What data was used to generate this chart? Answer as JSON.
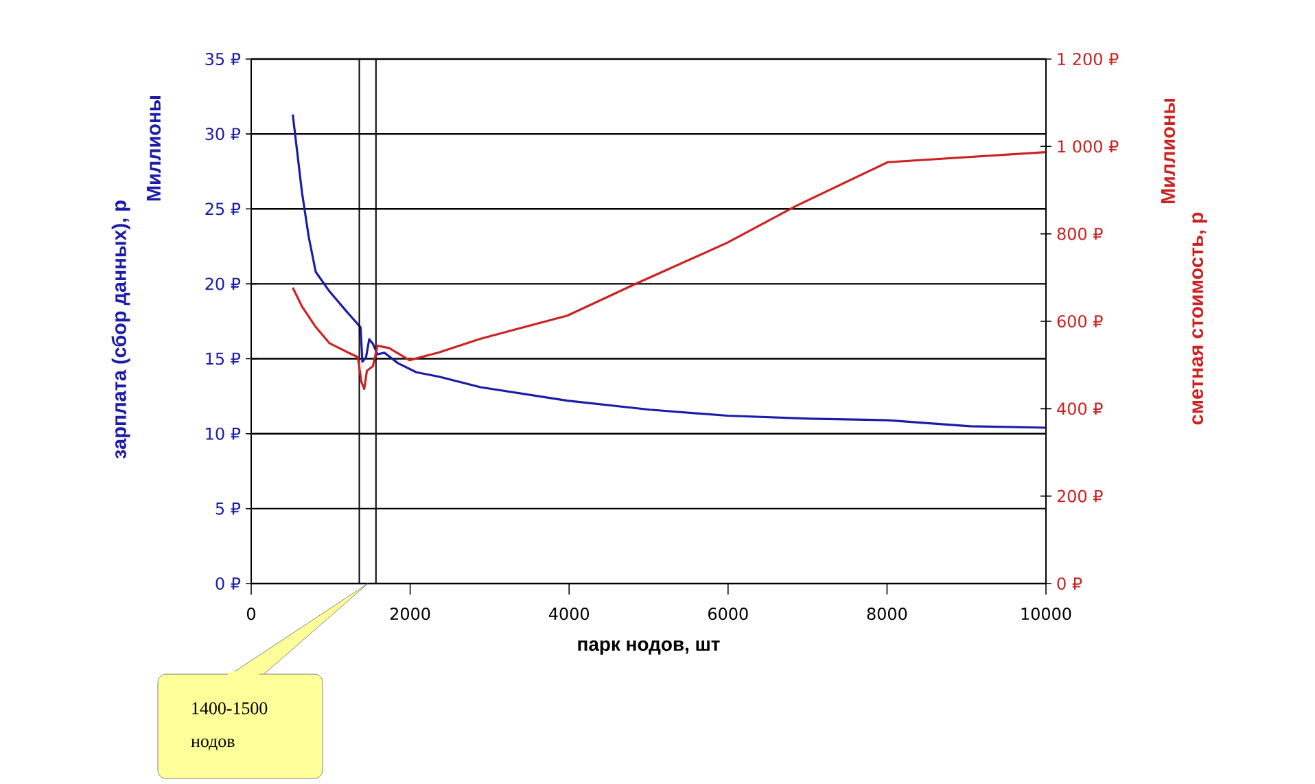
{
  "chart_data": {
    "type": "line",
    "xlabel": "парк нодов, шт",
    "ylabel": "зарплата (сбор данных), р",
    "y2label": "сметная стоимость, р",
    "xlim": [
      0,
      10000
    ],
    "xticks": [
      0,
      2000,
      4000,
      6000,
      8000,
      10000
    ],
    "ylim": [
      0,
      35
    ],
    "yticks": [
      {
        "value": 0,
        "label": "0 ₽"
      },
      {
        "value": 5,
        "label": "5 ₽"
      },
      {
        "value": 10,
        "label": "10 ₽"
      },
      {
        "value": 15,
        "label": "15 ₽"
      },
      {
        "value": 20,
        "label": "20 ₽"
      },
      {
        "value": 25,
        "label": "25 ₽"
      },
      {
        "value": 30,
        "label": "30 ₽"
      },
      {
        "value": 35,
        "label": "35 ₽"
      }
    ],
    "y2lim": [
      0,
      1200
    ],
    "y2ticks": [
      {
        "value": 0,
        "label": "0 ₽"
      },
      {
        "value": 200,
        "label": "200 ₽"
      },
      {
        "value": 400,
        "label": "400 ₽"
      },
      {
        "value": 600,
        "label": "600 ₽"
      },
      {
        "value": 800,
        "label": "800 ₽"
      },
      {
        "value": 1000,
        "label": "1 000 ₽"
      },
      {
        "value": 1200,
        "label": "1 200 ₽"
      }
    ],
    "grid": "y",
    "marker": "none",
    "line_style": "solid",
    "series": [
      {
        "color": "#1c1ca8",
        "x": [
          523,
          639,
          725,
          812,
          984,
          1209,
          1376,
          1399,
          1445,
          1485,
          1531,
          1589,
          1675,
          1848,
          2078,
          2366,
          2884,
          3978,
          5014,
          5993,
          7029,
          8008,
          9045,
          9995
        ],
        "values": [
          31.3,
          26.1,
          23.1,
          20.8,
          19.5,
          18.1,
          17.1,
          14.8,
          15.1,
          16.3,
          16.0,
          15.3,
          15.4,
          14.7,
          14.1,
          13.8,
          13.1,
          12.2,
          11.6,
          11.2,
          11.0,
          10.9,
          10.5,
          10.4
        ]
      },
      {
        "color": "#cc2222",
        "axis": "y2",
        "x": [
          523,
          639,
          812,
          984,
          1214,
          1342,
          1387,
          1422,
          1456,
          1531,
          1589,
          1733,
          1992,
          2366,
          2884,
          3978,
          4841,
          5993,
          6857,
          8008,
          9995
        ],
        "values": [
          677,
          634,
          587,
          550,
          529,
          518,
          461,
          445,
          487,
          497,
          544,
          539,
          511,
          529,
          560,
          613,
          686,
          780,
          864,
          964,
          987
        ]
      }
    ],
    "ref_lines": [
      {
        "axis": "x",
        "value": 1360,
        "color": "#000000"
      },
      {
        "axis": "x",
        "value": 1570,
        "color": "#000000"
      }
    ],
    "annotations": [
      "Миллионы",
      "Миллионы",
      "1400-1500 нодов"
    ]
  }
}
